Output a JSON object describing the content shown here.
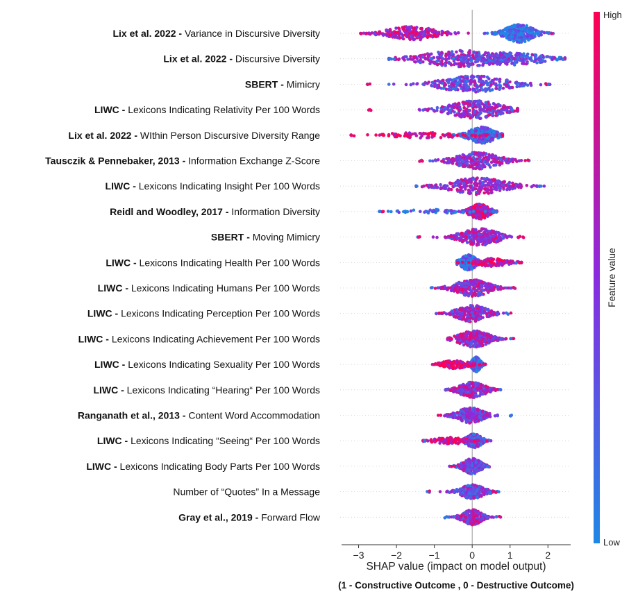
{
  "chart_data": {
    "type": "scatter",
    "subtype": "shap-beeswarm",
    "xlabel": "SHAP value (impact on model output)",
    "xlabel_note": "(1 - Constructive Outcome , 0 - Destructive Outcome)",
    "xlim": [
      -3.45,
      2.6
    ],
    "xticks": [
      -3,
      -2,
      -1,
      0,
      1,
      2
    ],
    "xtick_labels": [
      "−3",
      "−2",
      "−1",
      "0",
      "1",
      "2"
    ],
    "colorbar": {
      "title": "Feature value",
      "high_label": "High",
      "low_label": "Low",
      "high_color": "#ff0052",
      "low_color": "#1e88e5"
    },
    "features": [
      {
        "source": "Lix et al. 2022 - ",
        "name": "Variance in Discursive Diversity",
        "min": -2.95,
        "max": 2.15,
        "clusters": [
          [
            -1.6,
            0.55,
            10,
            0.7
          ],
          [
            1.25,
            0.32,
            13,
            0.12
          ]
        ]
      },
      {
        "source": "Lix et al. 2022 - ",
        "name": "Discursive Diversity",
        "min": -2.2,
        "max": 2.45,
        "clusters": [
          [
            -0.3,
            0.9,
            12,
            0.5
          ],
          [
            1.0,
            0.8,
            9,
            0.35
          ]
        ]
      },
      {
        "source": "SBERT - ",
        "name": "Mimicry",
        "min": -2.85,
        "max": 2.05,
        "clusters": [
          [
            0.05,
            0.75,
            12,
            0.4
          ]
        ]
      },
      {
        "source": "LIWC - ",
        "name": "Lexicons Indicating Relativity Per 100 Words",
        "min": -2.8,
        "max": 1.2,
        "clusters": [
          [
            0.1,
            0.6,
            13,
            0.5
          ]
        ]
      },
      {
        "source": "Lix et al. 2022 - ",
        "name": "WIthin Person Discursive Diversity Range",
        "min": -3.2,
        "max": 0.8,
        "clusters": [
          [
            0.25,
            0.3,
            12,
            0.25
          ],
          [
            -1.2,
            0.9,
            4,
            0.85
          ]
        ]
      },
      {
        "source": "Tausczik & Pennebaker, 2013 - ",
        "name": "Information Exchange Z-Score",
        "min": -1.45,
        "max": 1.5,
        "clusters": [
          [
            0.15,
            0.5,
            12,
            0.5
          ]
        ]
      },
      {
        "source": "LIWC - ",
        "name": "Lexicons Indicating Insight Per 100 Words",
        "min": -1.55,
        "max": 1.9,
        "clusters": [
          [
            0.15,
            0.65,
            12,
            0.55
          ]
        ]
      },
      {
        "source": "Reidl and Woodley, 2017 - ",
        "name": "Information Diversity",
        "min": -2.45,
        "max": 0.65,
        "clusters": [
          [
            0.2,
            0.22,
            11,
            0.75
          ],
          [
            -1.0,
            0.7,
            3,
            0.15
          ]
        ]
      },
      {
        "source": "SBERT - ",
        "name": "Moving Mimicry",
        "min": -1.5,
        "max": 1.4,
        "clusters": [
          [
            0.2,
            0.45,
            12,
            0.6
          ]
        ]
      },
      {
        "source": "LIWC - ",
        "name": "Lexicons Indicating Health Per 100 Words",
        "min": -0.4,
        "max": 1.3,
        "clusters": [
          [
            -0.1,
            0.18,
            11,
            0.15
          ],
          [
            0.55,
            0.35,
            6,
            0.8
          ]
        ]
      },
      {
        "source": "LIWC - ",
        "name": "Lexicons Indicating Humans Per 100 Words",
        "min": -1.1,
        "max": 1.2,
        "clusters": [
          [
            0.0,
            0.4,
            12,
            0.55
          ]
        ]
      },
      {
        "source": "LIWC - ",
        "name": "Lexicons Indicating Perception Per 100 Words",
        "min": -0.95,
        "max": 1.05,
        "clusters": [
          [
            0.0,
            0.35,
            12,
            0.55
          ]
        ]
      },
      {
        "source": "LIWC - ",
        "name": "Lexicons Indicating Achievement Per 100 Words",
        "min": -0.65,
        "max": 1.15,
        "clusters": [
          [
            0.05,
            0.35,
            12,
            0.55
          ]
        ]
      },
      {
        "source": "LIWC - ",
        "name": "Lexicons Indicating Sexuality Per 100 Words",
        "min": -1.05,
        "max": 0.35,
        "clusters": [
          [
            0.1,
            0.1,
            11,
            0.08
          ],
          [
            -0.45,
            0.3,
            6,
            0.85
          ]
        ]
      },
      {
        "source": "LIWC - ",
        "name": "Lexicons Indicating “Hearing“ Per 100 Words",
        "min": -0.7,
        "max": 0.75,
        "clusters": [
          [
            0.0,
            0.3,
            11,
            0.55
          ]
        ]
      },
      {
        "source": "Ranganath et al., 2013 - ",
        "name": "Content Word Accommodation",
        "min": -0.9,
        "max": 1.05,
        "clusters": [
          [
            -0.05,
            0.3,
            11,
            0.45
          ]
        ]
      },
      {
        "source": "LIWC - ",
        "name": "Lexicons Indicating “Seeing“ Per 100 Words",
        "min": -1.3,
        "max": 0.5,
        "clusters": [
          [
            0.05,
            0.18,
            10,
            0.35
          ],
          [
            -0.6,
            0.35,
            5,
            0.85
          ]
        ]
      },
      {
        "source": "LIWC - ",
        "name": "Lexicons Indicating Body Parts Per 100 Words",
        "min": -0.6,
        "max": 0.45,
        "clusters": [
          [
            0.0,
            0.22,
            11,
            0.45
          ]
        ]
      },
      {
        "source": "",
        "name": "Number of “Quotes” In a Message",
        "min": -1.2,
        "max": 0.7,
        "clusters": [
          [
            0.0,
            0.28,
            10,
            0.4
          ]
        ]
      },
      {
        "source": "Gray et al., 2019 - ",
        "name": "Forward Flow",
        "min": -0.75,
        "max": 0.75,
        "clusters": [
          [
            0.0,
            0.22,
            11,
            0.55
          ]
        ]
      }
    ]
  }
}
